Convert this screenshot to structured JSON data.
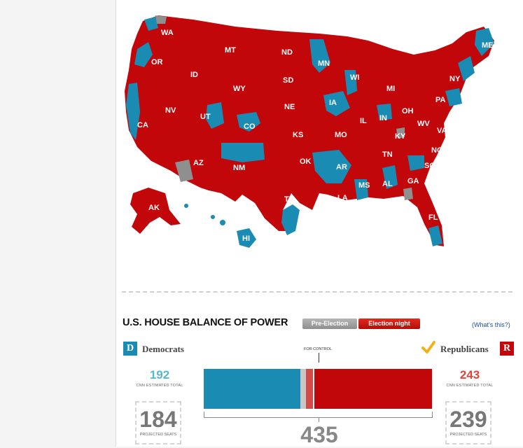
{
  "colors": {
    "democrat": "#1a8bb2",
    "republican": "#c2070b",
    "undecided": "#8f8f8f"
  },
  "map": {
    "state_labels": [
      "WA",
      "OR",
      "CA",
      "NV",
      "ID",
      "MT",
      "WY",
      "UT",
      "AZ",
      "NM",
      "CO",
      "ND",
      "SD",
      "NE",
      "KS",
      "OK",
      "TX",
      "MN",
      "IA",
      "MO",
      "AR",
      "LA",
      "WI",
      "IL",
      "MI",
      "IN",
      "OH",
      "KY",
      "TN",
      "MS",
      "AL",
      "GA",
      "FL",
      "SC",
      "NC",
      "VA",
      "WV",
      "PA",
      "NY",
      "ME",
      "AK",
      "HI"
    ]
  },
  "balance": {
    "title": "U.S. HOUSE BALANCE OF POWER",
    "tabs": [
      "Pre-Election",
      "Election night"
    ],
    "selected_tab": "Election night",
    "whats_this": "(What's this?)",
    "for_control": "FOR CONTROL",
    "democrats": {
      "badge": "D",
      "name": "Democrats",
      "estimated_total": "192",
      "estimated_label": "CNN ESTIMATED TOTAL",
      "projected_seats": "184",
      "projected_label": "PROJECTED SEATS"
    },
    "republicans": {
      "badge": "R",
      "name": "Republicans",
      "estimated_total": "243",
      "estimated_label": "CNN ESTIMATED TOTAL",
      "projected_seats": "239",
      "projected_label": "PROJECTED SEATS",
      "winner_check_icon": "checkmark-icon"
    },
    "total_seats": "435"
  }
}
